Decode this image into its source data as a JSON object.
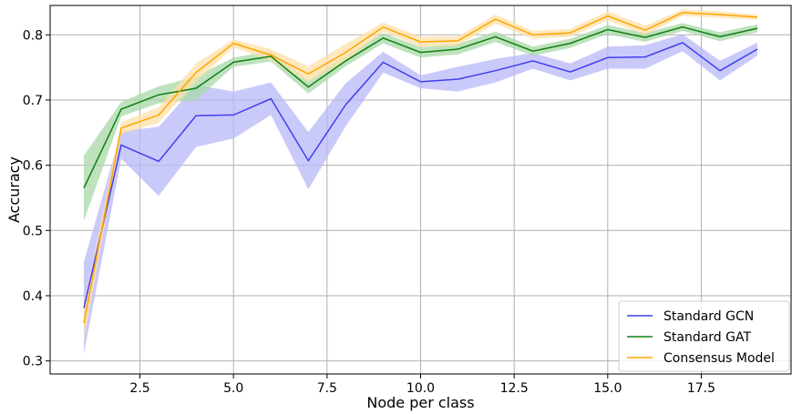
{
  "chart_data": {
    "type": "line",
    "xlabel": "Node per class",
    "ylabel": "Accuracy",
    "xlim": [
      0.1,
      19.9
    ],
    "ylim": [
      0.28,
      0.845
    ],
    "xticks": [
      2.5,
      5.0,
      7.5,
      10.0,
      12.5,
      15.0,
      17.5
    ],
    "xtick_labels": [
      "2.5",
      "5.0",
      "7.5",
      "10.0",
      "12.5",
      "15.0",
      "17.5"
    ],
    "yticks": [
      0.3,
      0.4,
      0.5,
      0.6,
      0.7,
      0.8
    ],
    "ytick_labels": [
      "0.3",
      "0.4",
      "0.5",
      "0.6",
      "0.7",
      "0.8"
    ],
    "grid": true,
    "legend_position": "bottom-right",
    "x": [
      1,
      2,
      3,
      4,
      5,
      6,
      7,
      8,
      9,
      10,
      11,
      12,
      13,
      14,
      15,
      16,
      17,
      18,
      19
    ],
    "series": [
      {
        "name": "Standard GCN",
        "color": "#4040f0",
        "band_color": "#b8b8f8",
        "values": [
          0.381,
          0.631,
          0.606,
          0.676,
          0.677,
          0.702,
          0.607,
          0.693,
          0.758,
          0.728,
          0.732,
          0.745,
          0.76,
          0.743,
          0.765,
          0.766,
          0.788,
          0.745,
          0.778
        ],
        "lower": [
          0.311,
          0.61,
          0.553,
          0.628,
          0.641,
          0.677,
          0.563,
          0.66,
          0.742,
          0.718,
          0.713,
          0.727,
          0.748,
          0.73,
          0.748,
          0.748,
          0.775,
          0.73,
          0.768
        ],
        "upper": [
          0.452,
          0.652,
          0.659,
          0.723,
          0.713,
          0.727,
          0.651,
          0.726,
          0.774,
          0.738,
          0.751,
          0.763,
          0.772,
          0.756,
          0.782,
          0.784,
          0.801,
          0.76,
          0.788
        ]
      },
      {
        "name": "Standard GAT",
        "color": "#108010",
        "band_color": "#a8d8a8",
        "values": [
          0.565,
          0.686,
          0.708,
          0.718,
          0.758,
          0.767,
          0.72,
          0.76,
          0.795,
          0.773,
          0.778,
          0.797,
          0.775,
          0.787,
          0.808,
          0.796,
          0.812,
          0.797,
          0.81
        ],
        "lower": [
          0.515,
          0.675,
          0.695,
          0.7,
          0.751,
          0.759,
          0.71,
          0.752,
          0.787,
          0.765,
          0.77,
          0.789,
          0.768,
          0.78,
          0.801,
          0.789,
          0.806,
          0.79,
          0.804
        ],
        "upper": [
          0.615,
          0.697,
          0.721,
          0.736,
          0.765,
          0.775,
          0.73,
          0.768,
          0.803,
          0.781,
          0.786,
          0.805,
          0.782,
          0.794,
          0.815,
          0.803,
          0.818,
          0.804,
          0.816
        ]
      },
      {
        "name": "Consensus Model",
        "color": "#ffa500",
        "band_color": "#fde0a8",
        "values": [
          0.358,
          0.657,
          0.677,
          0.742,
          0.787,
          0.769,
          0.74,
          0.773,
          0.812,
          0.789,
          0.791,
          0.824,
          0.8,
          0.803,
          0.829,
          0.807,
          0.834,
          0.831,
          0.827
        ],
        "lower": [
          0.33,
          0.648,
          0.665,
          0.728,
          0.781,
          0.76,
          0.728,
          0.76,
          0.805,
          0.781,
          0.784,
          0.817,
          0.794,
          0.797,
          0.822,
          0.8,
          0.829,
          0.826,
          0.823
        ],
        "upper": [
          0.386,
          0.666,
          0.689,
          0.756,
          0.793,
          0.778,
          0.752,
          0.786,
          0.819,
          0.797,
          0.798,
          0.831,
          0.806,
          0.809,
          0.836,
          0.814,
          0.839,
          0.836,
          0.831
        ]
      }
    ]
  }
}
